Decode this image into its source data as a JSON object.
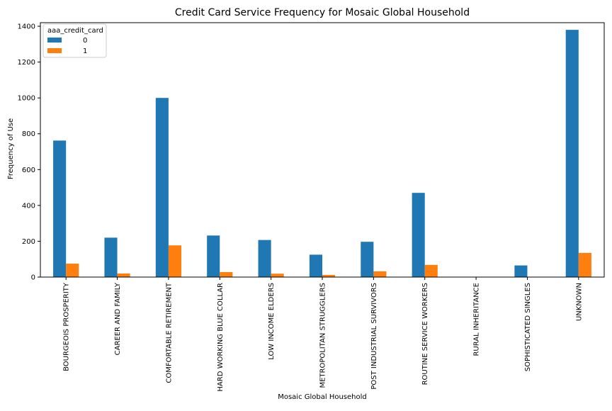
{
  "chart_data": {
    "type": "bar",
    "title": "Credit Card Service Frequency for Mosaic Global Household",
    "xlabel": "Mosaic Global Household",
    "ylabel": "Frequency of Use",
    "ylim": [
      0,
      1420
    ],
    "yticks": [
      0,
      200,
      400,
      600,
      800,
      1000,
      1200,
      1400
    ],
    "grid": false,
    "legend": {
      "title": "aaa_credit_card",
      "position": "top-left"
    },
    "categories": [
      "BOURGEOIS PROSPERITY",
      "CAREER AND FAMILY",
      "COMFORTABLE RETIREMENT",
      "HARD WORKING BLUE COLLAR",
      "LOW INCOME ELDERS",
      "METROPOLITAN STRUGGLERS",
      "POST INDUSTRIAL SURVIVORS",
      "ROUTINE SERVICE WORKERS",
      "RURAL INHERITANCE",
      "SOPHISTICATED SINGLES",
      "UNKNOWN"
    ],
    "series": [
      {
        "name": "0",
        "color": "#1f77b4",
        "values": [
          762,
          220,
          1000,
          232,
          207,
          125,
          197,
          470,
          0,
          65,
          1380
        ]
      },
      {
        "name": "1",
        "color": "#ff7f0e",
        "values": [
          75,
          20,
          177,
          28,
          19,
          12,
          32,
          68,
          0,
          0,
          135
        ]
      }
    ]
  }
}
